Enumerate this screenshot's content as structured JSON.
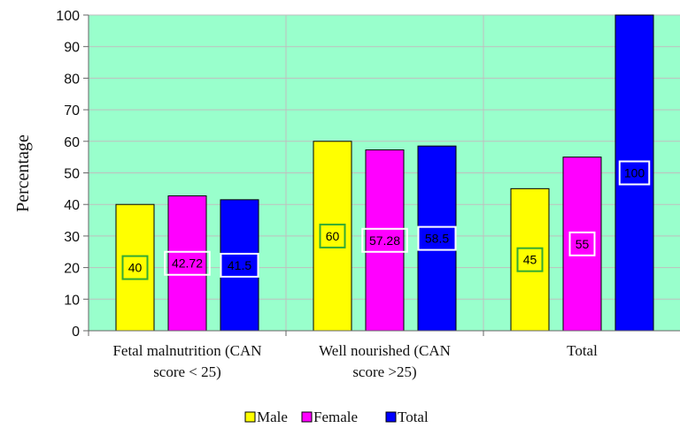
{
  "chart_data": {
    "type": "bar",
    "title": "",
    "xlabel": "",
    "ylabel": "Percentage",
    "ylim": [
      0,
      100
    ],
    "yticks": [
      0,
      10,
      20,
      30,
      40,
      50,
      60,
      70,
      80,
      90,
      100
    ],
    "categories": [
      [
        "Fetal malnutrition (CAN",
        "score < 25)"
      ],
      [
        "Well nourished (CAN",
        "score >25)"
      ],
      [
        "Total"
      ]
    ],
    "series": [
      {
        "name": "Male",
        "color": "#FFFF00",
        "label_border": "#33AA33",
        "label_text": "#000000",
        "values": [
          40,
          60,
          45
        ],
        "labels": [
          "40",
          "60",
          "45"
        ]
      },
      {
        "name": "Female",
        "color": "#FF00FF",
        "label_border": "#FFFFFF",
        "label_text": "#000000",
        "values": [
          42.72,
          57.28,
          55
        ],
        "labels": [
          "42.72",
          "57.28",
          "55"
        ]
      },
      {
        "name": "Total",
        "color": "#0000FF",
        "label_border": "#FFFFFF",
        "label_text": "#000000",
        "values": [
          41.5,
          58.5,
          100
        ],
        "labels": [
          "41.5",
          "58.5",
          "100"
        ]
      }
    ],
    "plot_background": "#99FFCC",
    "grid": true,
    "legend_position": "bottom"
  }
}
